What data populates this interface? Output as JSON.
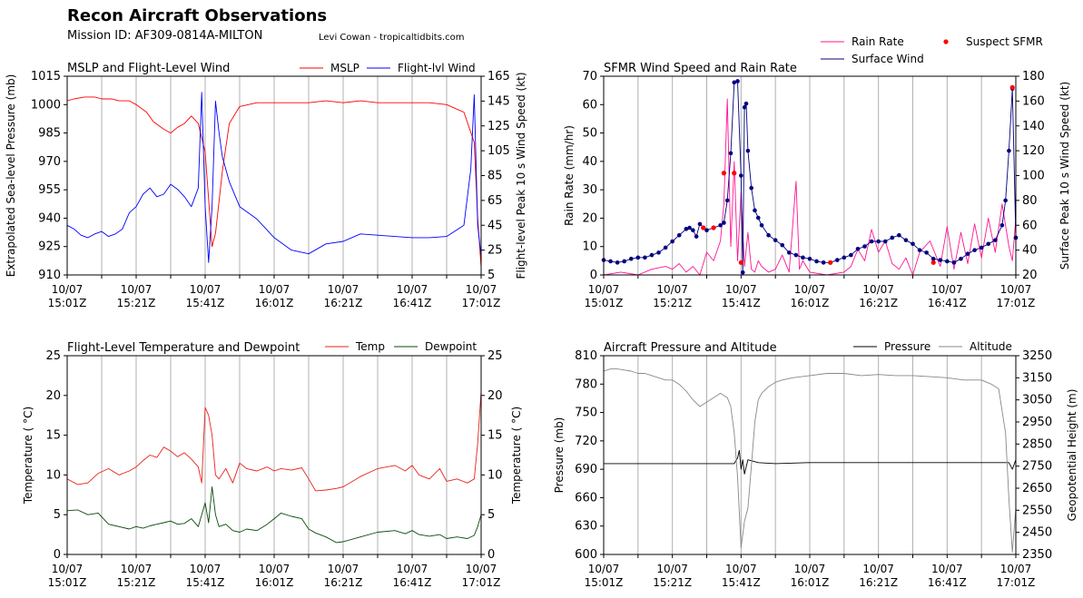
{
  "header": {
    "title": "Recon Aircraft Observations",
    "mission": "Mission ID: AF309-0814A-MILTON",
    "credit": "Levi Cowan - tropicaltidbits.com"
  },
  "time_tick_labels": [
    [
      "10/07",
      "15:01Z"
    ],
    [
      "10/07",
      "15:21Z"
    ],
    [
      "10/07",
      "15:41Z"
    ],
    [
      "10/07",
      "16:01Z"
    ],
    [
      "10/07",
      "16:21Z"
    ],
    [
      "10/07",
      "16:41Z"
    ],
    [
      "10/07",
      "17:01Z"
    ]
  ],
  "colors": {
    "mslp": "#ff0000",
    "flightwind": "#0000ff",
    "rain": "#ff1493",
    "surface": "#000080",
    "suspect": "#ff0000",
    "temp": "#e8231a",
    "dew": "#0a4a0a",
    "pressure": "#000000",
    "altitude": "#888888"
  },
  "chart_data": [
    {
      "type": "line",
      "title": "MSLP and Flight-Level Wind",
      "xlabel": "",
      "ylabel": "Extrapolated Sea-level Pressure (mb)",
      "ylabel_right": "Flight-level Peak 10 s Wind Speed (kt)",
      "x_range": [
        "10/07 15:01Z",
        "10/07 17:01Z"
      ],
      "ylim": [
        910,
        1015
      ],
      "ylim_right": [
        5,
        165
      ],
      "yticks": [
        910,
        925,
        940,
        955,
        970,
        985,
        1000,
        1015
      ],
      "yticks_right": [
        5,
        25,
        45,
        65,
        85,
        105,
        125,
        145,
        165
      ],
      "legend": "top-right",
      "series": [
        {
          "name": "MSLP",
          "axis": "left",
          "minutes": [
            0,
            2,
            5,
            8,
            10,
            13,
            15,
            18,
            20,
            23,
            25,
            28,
            30,
            32,
            34,
            36,
            38,
            40,
            41,
            42,
            43,
            45,
            47,
            50,
            55,
            60,
            65,
            70,
            75,
            80,
            85,
            90,
            95,
            100,
            105,
            110,
            115,
            118,
            119,
            120
          ],
          "values": [
            1002,
            1003,
            1004,
            1004,
            1003,
            1003,
            1002,
            1002,
            1000,
            996,
            991,
            987,
            985,
            988,
            990,
            994,
            990,
            975,
            950,
            925,
            932,
            965,
            990,
            999,
            1001,
            1001,
            1001,
            1001,
            1002,
            1001,
            1002,
            1001,
            1001,
            1001,
            1001,
            1000,
            996,
            980,
            940,
            914
          ]
        },
        {
          "name": "Flight-lvl Wind",
          "axis": "right",
          "minutes": [
            0,
            2,
            4,
            6,
            8,
            10,
            12,
            14,
            16,
            18,
            20,
            22,
            24,
            26,
            28,
            30,
            32,
            34,
            36,
            38,
            39,
            40,
            41,
            42,
            43,
            44,
            45,
            47,
            50,
            55,
            60,
            65,
            70,
            75,
            80,
            85,
            90,
            95,
            100,
            105,
            110,
            115,
            117,
            118,
            119,
            120
          ],
          "values": [
            45,
            42,
            37,
            35,
            38,
            40,
            36,
            38,
            42,
            55,
            60,
            70,
            75,
            68,
            70,
            78,
            74,
            68,
            60,
            75,
            152,
            60,
            15,
            60,
            145,
            120,
            100,
            80,
            60,
            50,
            35,
            25,
            22,
            30,
            32,
            38,
            37,
            36,
            35,
            35,
            36,
            45,
            90,
            150,
            45,
            20
          ]
        }
      ]
    },
    {
      "type": "line",
      "title": "SFMR Wind Speed and Rain Rate",
      "xlabel": "",
      "ylabel": "Rain Rate (mm/hr)",
      "ylabel_right": "Surface Peak 10 s Wind Speed (kt)",
      "x_range": [
        "10/07 15:01Z",
        "10/07 17:01Z"
      ],
      "ylim": [
        0,
        70
      ],
      "ylim_right": [
        20,
        180
      ],
      "yticks": [
        0,
        10,
        20,
        30,
        40,
        50,
        60,
        70
      ],
      "yticks_right": [
        20,
        40,
        60,
        80,
        100,
        120,
        140,
        160,
        180
      ],
      "legend": "upper, outside",
      "series": [
        {
          "name": "Rain Rate",
          "axis": "left",
          "minutes": [
            0,
            5,
            10,
            14,
            18,
            20,
            22,
            24,
            26,
            28,
            30,
            32,
            34,
            35,
            36,
            37,
            38,
            39,
            40,
            41,
            42,
            43,
            44,
            45,
            46,
            48,
            50,
            52,
            54,
            56,
            57,
            58,
            60,
            65,
            70,
            72,
            74,
            76,
            78,
            80,
            82,
            84,
            86,
            88,
            90,
            92,
            95,
            98,
            100,
            102,
            104,
            106,
            108,
            110,
            112,
            114,
            116,
            118,
            119,
            120
          ],
          "values": [
            0,
            1,
            0,
            2,
            3,
            2,
            4,
            1,
            3,
            0,
            8,
            5,
            12,
            25,
            62,
            10,
            40,
            5,
            29,
            3,
            15,
            2,
            1,
            5,
            3,
            1,
            2,
            7,
            1,
            33,
            2,
            5,
            1,
            0,
            1,
            3,
            9,
            5,
            16,
            8,
            12,
            4,
            2,
            6,
            0,
            8,
            12,
            3,
            17,
            2,
            15,
            4,
            18,
            6,
            20,
            8,
            25,
            10,
            5,
            20
          ]
        },
        {
          "name": "Surface Wind",
          "axis": "right",
          "minutes": [
            0,
            2,
            4,
            6,
            8,
            10,
            12,
            14,
            16,
            18,
            20,
            22,
            24,
            25,
            26,
            27,
            28,
            30,
            32,
            34,
            35,
            36,
            37,
            38,
            39,
            40,
            40.5,
            41,
            41.5,
            42,
            43,
            44,
            45,
            46,
            48,
            50,
            52,
            54,
            56,
            58,
            60,
            62,
            64,
            66,
            68,
            70,
            72,
            74,
            76,
            78,
            80,
            82,
            84,
            86,
            88,
            90,
            92,
            94,
            96,
            98,
            100,
            102,
            104,
            106,
            108,
            110,
            112,
            114,
            116,
            117,
            118,
            119,
            120
          ],
          "values": [
            32,
            31,
            30,
            31,
            33,
            34,
            34,
            36,
            38,
            42,
            47,
            52,
            57,
            58,
            56,
            51,
            61,
            56,
            58,
            60,
            62,
            80,
            118,
            175,
            176,
            100,
            22,
            155,
            158,
            120,
            90,
            72,
            66,
            60,
            52,
            48,
            44,
            38,
            36,
            34,
            33,
            31,
            30,
            30,
            32,
            34,
            36,
            41,
            43,
            47,
            47,
            47,
            50,
            52,
            48,
            45,
            40,
            38,
            33,
            32,
            31,
            30,
            33,
            37,
            40,
            42,
            45,
            48,
            60,
            80,
            120,
            170,
            50
          ]
        },
        {
          "name": "Suspect SFMR",
          "axis": "right",
          "minutes": [
            29,
            32,
            35,
            38,
            40,
            66,
            96,
            119
          ],
          "values": [
            58,
            58,
            102,
            102,
            30,
            30,
            30,
            171
          ]
        }
      ]
    },
    {
      "type": "line",
      "title": "Flight-Level Temperature and Dewpoint",
      "xlabel": "",
      "ylabel": "Temperature ( C)",
      "ylabel_right": "Temperature ( C)",
      "x_range": [
        "10/07 15:01Z",
        "10/07 17:01Z"
      ],
      "ylim": [
        0,
        25
      ],
      "yticks": [
        0,
        5,
        10,
        15,
        20,
        25
      ],
      "legend": "top-right",
      "series": [
        {
          "name": "Temp",
          "axis": "left",
          "minutes": [
            0,
            3,
            6,
            9,
            12,
            15,
            18,
            20,
            22,
            24,
            26,
            28,
            30,
            32,
            34,
            36,
            38,
            39,
            40,
            41,
            42,
            43,
            44,
            46,
            48,
            50,
            52,
            55,
            58,
            60,
            62,
            65,
            68,
            70,
            72,
            75,
            78,
            80,
            85,
            90,
            95,
            98,
            100,
            102,
            105,
            108,
            110,
            113,
            116,
            118,
            119,
            120
          ],
          "values": [
            9.5,
            8.8,
            9.0,
            10.2,
            10.8,
            10.0,
            10.5,
            11.0,
            11.8,
            12.5,
            12.2,
            13.5,
            13.0,
            12.3,
            12.8,
            12.0,
            11.0,
            9.0,
            18.5,
            17.5,
            15.0,
            10.0,
            9.5,
            10.8,
            9.0,
            11.5,
            10.8,
            10.5,
            11.0,
            10.5,
            10.8,
            10.6,
            10.9,
            9.5,
            8.0,
            8.1,
            8.3,
            8.5,
            9.8,
            10.8,
            11.2,
            10.5,
            11.2,
            10.0,
            9.5,
            10.8,
            9.2,
            9.5,
            9.0,
            9.5,
            14.0,
            20.5
          ]
        },
        {
          "name": "Dewpoint",
          "axis": "left",
          "minutes": [
            0,
            3,
            6,
            9,
            12,
            15,
            18,
            20,
            22,
            24,
            26,
            28,
            30,
            32,
            34,
            36,
            38,
            39,
            40,
            41,
            42,
            43,
            44,
            46,
            48,
            50,
            52,
            55,
            58,
            60,
            62,
            65,
            68,
            70,
            72,
            75,
            78,
            80,
            85,
            90,
            95,
            98,
            100,
            102,
            105,
            108,
            110,
            113,
            116,
            118,
            119,
            120
          ],
          "values": [
            5.5,
            5.6,
            5.0,
            5.2,
            3.8,
            3.5,
            3.2,
            3.5,
            3.3,
            3.6,
            3.8,
            4.0,
            4.2,
            3.8,
            3.9,
            4.5,
            3.5,
            5.0,
            6.5,
            4.0,
            8.5,
            5.0,
            3.5,
            3.8,
            3.0,
            2.8,
            3.2,
            3.0,
            3.8,
            4.5,
            5.2,
            4.8,
            4.5,
            3.2,
            2.7,
            2.2,
            1.5,
            1.6,
            2.2,
            2.8,
            3.0,
            2.6,
            3.0,
            2.5,
            2.3,
            2.5,
            2.0,
            2.2,
            2.0,
            2.4,
            3.5,
            5.0
          ]
        }
      ]
    },
    {
      "type": "line",
      "title": "Aircraft Pressure and Altitude",
      "xlabel": "",
      "ylabel": "Pressure (mb)",
      "ylabel_right": "Geopotential Height (m)",
      "x_range": [
        "10/07 15:01Z",
        "10/07 17:01Z"
      ],
      "ylim": [
        600,
        810
      ],
      "ylim_right": [
        2350,
        3250
      ],
      "yticks": [
        600,
        630,
        660,
        690,
        720,
        750,
        780,
        810
      ],
      "yticks_right": [
        2350,
        2450,
        2550,
        2650,
        2750,
        2850,
        2950,
        3050,
        3150,
        3250
      ],
      "legend": "top-right",
      "series": [
        {
          "name": "Pressure",
          "axis": "left",
          "minutes": [
            0,
            10,
            20,
            30,
            38,
            39,
            39.5,
            40,
            40.5,
            41,
            42,
            45,
            50,
            60,
            70,
            80,
            90,
            100,
            110,
            118,
            119,
            120
          ],
          "values": [
            696,
            696,
            696,
            696,
            696,
            702,
            710,
            690,
            700,
            685,
            700,
            697,
            696,
            697,
            697,
            697,
            697,
            697,
            697,
            697,
            690,
            700
          ]
        },
        {
          "name": "Altitude",
          "axis": "right",
          "minutes": [
            0,
            2,
            4,
            6,
            8,
            10,
            12,
            14,
            16,
            18,
            20,
            22,
            24,
            26,
            28,
            30,
            32,
            34,
            36,
            37,
            38,
            39,
            40,
            41,
            42,
            43,
            44,
            45,
            46,
            48,
            50,
            52,
            55,
            60,
            65,
            70,
            75,
            80,
            85,
            90,
            95,
            100,
            105,
            110,
            113,
            115,
            117,
            118,
            119,
            120
          ],
          "values": [
            3180,
            3190,
            3190,
            3185,
            3180,
            3170,
            3170,
            3160,
            3150,
            3140,
            3140,
            3120,
            3090,
            3050,
            3020,
            3040,
            3060,
            3080,
            3060,
            3020,
            2900,
            2700,
            2380,
            2500,
            2560,
            2750,
            2950,
            3050,
            3080,
            3110,
            3130,
            3140,
            3150,
            3160,
            3170,
            3170,
            3160,
            3165,
            3160,
            3160,
            3155,
            3150,
            3140,
            3140,
            3120,
            3100,
            2900,
            2600,
            2360,
            2560
          ]
        }
      ]
    }
  ]
}
